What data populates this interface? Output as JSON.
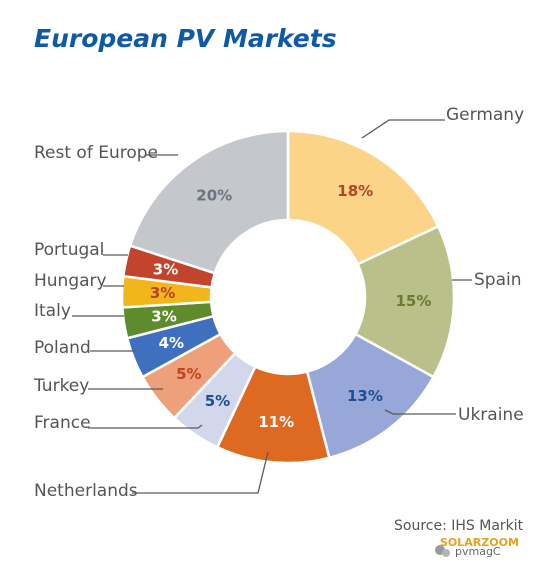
{
  "chart_data": {
    "type": "pie",
    "title": "European PV Markets",
    "donut": true,
    "categories": [
      "Germany",
      "Spain",
      "Ukraine",
      "Netherlands",
      "France",
      "Turkey",
      "Poland",
      "Italy",
      "Hungary",
      "Portugal",
      "Rest of Europe"
    ],
    "values": [
      18,
      15,
      13,
      11,
      5,
      5,
      4,
      3,
      3,
      3,
      20
    ],
    "data_labels": [
      "18%",
      "15%",
      "13%",
      "11%",
      "5%",
      "5%",
      "4%",
      "3%",
      "3%",
      "3%",
      "20%"
    ],
    "colors": [
      "#fcd488",
      "#b9c08a",
      "#97a8d8",
      "#de6a22",
      "#d3d7ec",
      "#eda07a",
      "#3f6fbf",
      "#5e8b2b",
      "#f3b51c",
      "#c2442c",
      "#c4c7cc"
    ],
    "label_colors": [
      "#b5432a",
      "#6d7a2e",
      "#1d4d95",
      "#ffffff",
      "#1d4d95",
      "#c0451c",
      "#ffffff",
      "#ffffff",
      "#b5432a",
      "#ffffff",
      "#6b7380"
    ],
    "source": "Source: IHS Markit"
  },
  "watermark": {
    "brand": "SOLARZOOM",
    "account": "pvmagC",
    "icon": "wechat-icon"
  }
}
